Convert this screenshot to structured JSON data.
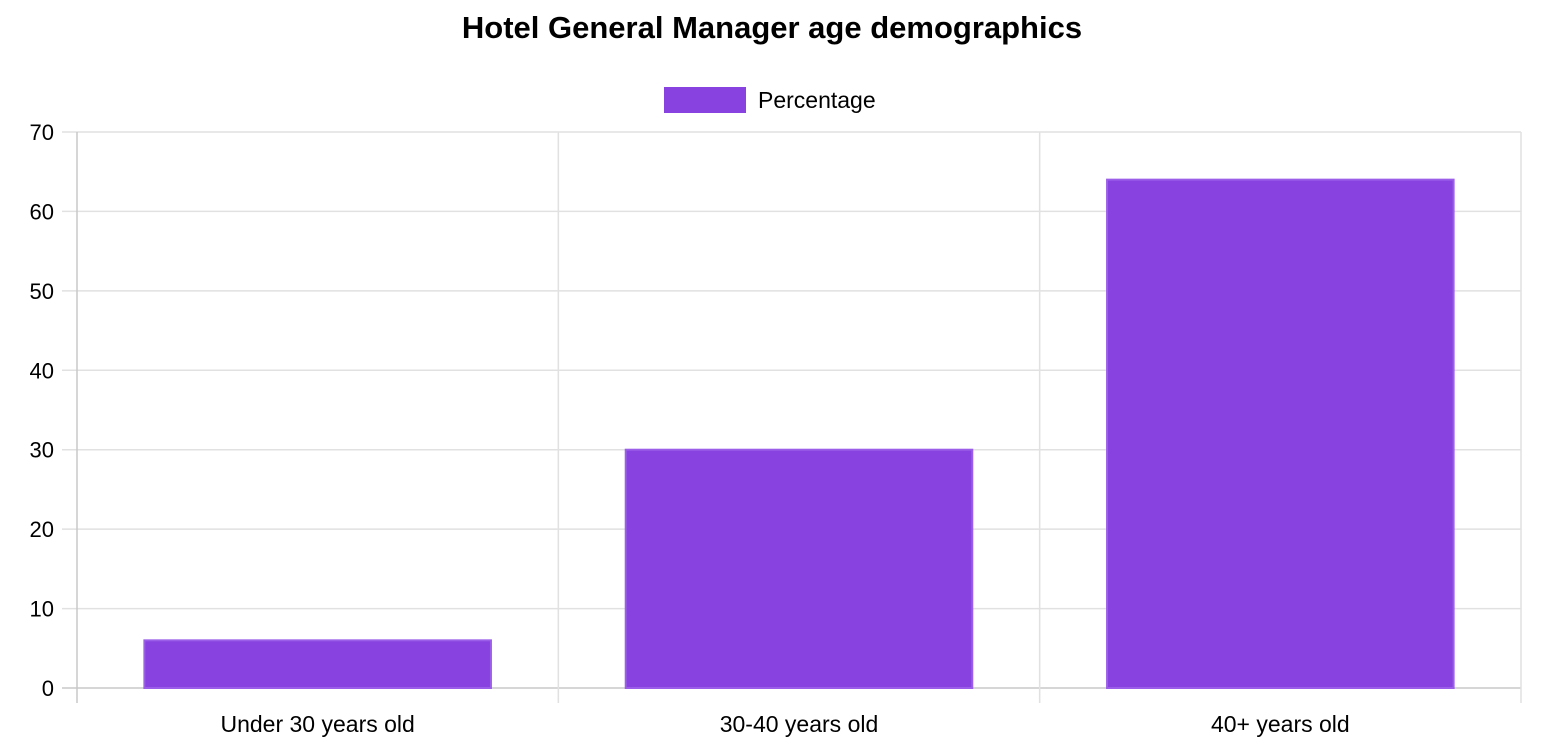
{
  "chart_data": {
    "type": "bar",
    "title": "Hotel General Manager age demographics",
    "categories": [
      "Under 30 years old",
      "30-40 years old",
      "40+ years old"
    ],
    "series": [
      {
        "name": "Percentage",
        "values": [
          6,
          30,
          64
        ],
        "color": "#8842df"
      }
    ],
    "ylim": [
      0,
      70
    ],
    "yticks": [
      0,
      10,
      20,
      30,
      40,
      50,
      60,
      70
    ],
    "xlabel": "",
    "ylabel": "",
    "grid": true,
    "legend": "top-center"
  }
}
